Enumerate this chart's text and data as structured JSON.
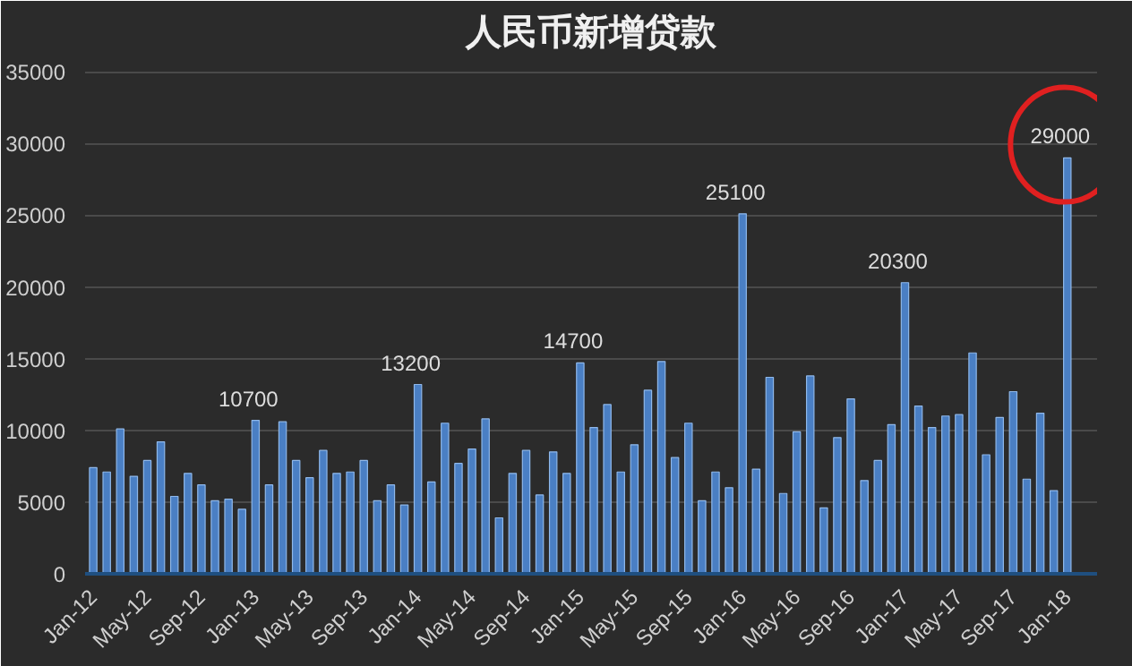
{
  "chart_data": {
    "type": "bar",
    "title": "人民币新增贷款",
    "categories": [
      "Jan-12",
      null,
      null,
      null,
      "May-12",
      null,
      null,
      null,
      "Sep-12",
      null,
      null,
      null,
      "Jan-13",
      null,
      null,
      null,
      "May-13",
      null,
      null,
      null,
      "Sep-13",
      null,
      null,
      null,
      "Jan-14",
      null,
      null,
      null,
      "May-14",
      null,
      null,
      null,
      "Sep-14",
      null,
      null,
      null,
      "Jan-15",
      null,
      null,
      null,
      "May-15",
      null,
      null,
      null,
      "Sep-15",
      null,
      null,
      null,
      "Jan-16",
      null,
      null,
      null,
      "May-16",
      null,
      null,
      null,
      "Sep-16",
      null,
      null,
      null,
      "Jan-17",
      null,
      null,
      null,
      "May-17",
      null,
      null,
      null,
      "Sep-17",
      null,
      null,
      null,
      "Jan-18"
    ],
    "values": [
      7400,
      7100,
      10100,
      6800,
      7900,
      9200,
      5400,
      7000,
      6200,
      5100,
      5200,
      4500,
      10700,
      6200,
      10600,
      7900,
      6700,
      8600,
      7000,
      7100,
      7900,
      5100,
      6200,
      4800,
      13200,
      6400,
      10500,
      7700,
      8700,
      10800,
      3900,
      7000,
      8600,
      5500,
      8500,
      7000,
      14700,
      10200,
      11800,
      7100,
      9000,
      12800,
      14800,
      8100,
      10500,
      5100,
      7100,
      6000,
      25100,
      7300,
      13700,
      5600,
      9900,
      13800,
      4600,
      9500,
      12200,
      6500,
      7900,
      10400,
      20300,
      11700,
      10200,
      11000,
      11100,
      15400,
      8300,
      10900,
      12700,
      6600,
      11200,
      5800,
      29000
    ],
    "value_labels": [
      null,
      null,
      null,
      null,
      null,
      null,
      null,
      null,
      null,
      null,
      null,
      null,
      "10700",
      null,
      null,
      null,
      null,
      null,
      null,
      null,
      null,
      null,
      null,
      null,
      "13200",
      null,
      null,
      null,
      null,
      null,
      null,
      null,
      null,
      null,
      null,
      null,
      "14700",
      null,
      null,
      null,
      null,
      null,
      null,
      null,
      null,
      null,
      null,
      null,
      "25100",
      null,
      null,
      null,
      null,
      null,
      null,
      null,
      null,
      null,
      null,
      null,
      "20300",
      null,
      null,
      null,
      null,
      null,
      null,
      null,
      null,
      null,
      null,
      null,
      "29000"
    ],
    "color": "#4a7fc4",
    "ylim": [
      0,
      35000
    ],
    "yticks": [
      0,
      5000,
      10000,
      15000,
      20000,
      25000,
      30000,
      35000
    ],
    "grid": "y"
  }
}
